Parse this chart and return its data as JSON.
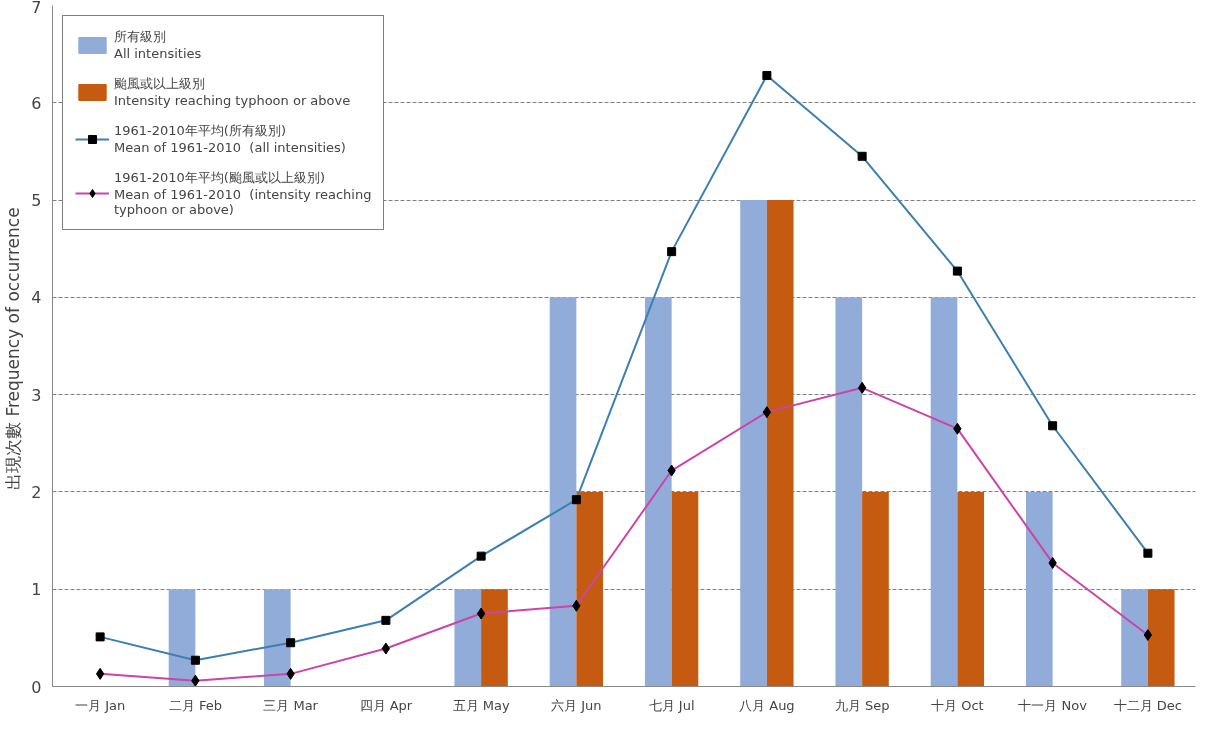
{
  "chart_data": {
    "type": "bar",
    "ylabel": "出現次數  Frequency of occurrence",
    "categories": [
      "一月 Jan",
      "二月 Feb",
      "三月 Mar",
      "四月 Apr",
      "五月 May",
      "六月 Jun",
      "七月 Jul",
      "八月 Aug",
      "九月 Sep",
      "十月 Oct",
      "十一月 Nov",
      "十二月 Dec"
    ],
    "series": [
      {
        "name": "所有級別\nAll intensities",
        "color": "#92acd9",
        "values": [
          0,
          1,
          1,
          0,
          1,
          4,
          4,
          5,
          4,
          4,
          2,
          1
        ]
      },
      {
        "name": "颱風或以上級別\nIntensity reaching typhoon or above",
        "color": "#c55a11",
        "values": [
          0,
          0,
          0,
          0,
          1,
          2,
          2,
          5,
          2,
          2,
          0,
          1
        ]
      },
      {
        "name": "1961-2010年平均(所有級別)\nMean of 1961-2010  (all intensities)",
        "type": "line",
        "marker": "square",
        "color": "#3c7fb1",
        "values": [
          0.51,
          0.27,
          0.45,
          0.68,
          1.34,
          1.92,
          4.47,
          6.28,
          5.45,
          4.27,
          2.68,
          1.37
        ]
      },
      {
        "name": "1961-2010年平均(颱風或以上級別)\nMean of 1961-2010  (intensity reaching\ntyphoon or above)",
        "type": "line",
        "marker": "diamond",
        "color": "#cc44a8",
        "values": [
          0.13,
          0.06,
          0.13,
          0.39,
          0.75,
          0.83,
          2.22,
          2.82,
          3.07,
          2.65,
          1.27,
          0.53
        ]
      }
    ],
    "ylim": [
      0,
      7
    ],
    "yticks": [
      0,
      1,
      2,
      3,
      4,
      5,
      6,
      7
    ],
    "grid": "y",
    "legend": "top left",
    "line_style": "solid"
  }
}
